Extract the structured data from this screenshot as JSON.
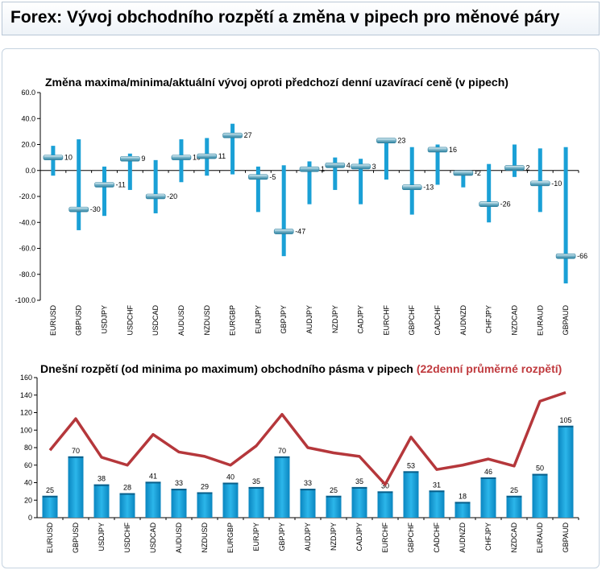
{
  "header": {
    "title": "Forex: Vývoj obchodního rozpětí a změna v pipech pro měnové páry"
  },
  "colors": {
    "bar": "#1aa0d6",
    "bar_dark": "#0a76ad",
    "line": "#b5373b",
    "highlight": "#c03a3e"
  },
  "chart_data": [
    {
      "type": "bar",
      "subtype": "range-marker",
      "title": "Změna maxima/minima/aktuální vývoj oproti předchozí denní uzavírací ceně (v pipech)",
      "ylim": [
        -100,
        60
      ],
      "yticks": [
        "60.0",
        "40.0",
        "20.0",
        "0.0",
        "-20.0",
        "-40.0",
        "-60.0",
        "-80.0",
        "-100.0"
      ],
      "categories": [
        "EURUSD",
        "GBPUSD",
        "USDJPY",
        "USDCHF",
        "USDCAD",
        "AUDUSD",
        "NZDUSD",
        "EURGBP",
        "EURJPY",
        "GBPJPY",
        "AUDJPY",
        "NZDJPY",
        "CADJPY",
        "EURCHF",
        "GBPCHF",
        "CADCHF",
        "AUDNZD",
        "CHFJPY",
        "NZDCAD",
        "EURAUD",
        "GBPAUD"
      ],
      "high": [
        19,
        24,
        3,
        13,
        8,
        24,
        25,
        36,
        3,
        4,
        7,
        10,
        9,
        24,
        18,
        20,
        0,
        5,
        20,
        17,
        18
      ],
      "low": [
        -4,
        -46,
        -35,
        -15,
        -33,
        -9,
        -4,
        -3,
        -32,
        -66,
        -26,
        -15,
        -26,
        -7,
        -34,
        -11,
        -13,
        -40,
        -5,
        -32,
        -87
      ],
      "current": [
        10,
        -30,
        -11,
        9,
        -20,
        10,
        11,
        27,
        -5,
        -47,
        1,
        4,
        3,
        23,
        -13,
        16,
        -2,
        -26,
        2,
        -10,
        -66
      ],
      "labels": [
        "10",
        "-30",
        "-11",
        "9",
        "-20",
        "10",
        "11",
        "27",
        "-5",
        "-47",
        "1",
        "4",
        "3",
        "23",
        "-13",
        "16",
        "-2",
        "-26",
        "2",
        "-10",
        "-66"
      ],
      "grid": false
    },
    {
      "type": "bar",
      "title_main": "Dnešní rozpětí (od minima po maximum) obchodního pásma v pipech",
      "title_highlight": "(22denní průměrné rozpětí)",
      "ylim": [
        0,
        160
      ],
      "yticks": [
        "160",
        "140",
        "120",
        "100",
        "80",
        "60",
        "40",
        "20",
        "0"
      ],
      "categories": [
        "EURUSD",
        "GBPUSD",
        "USDJPY",
        "USDCHF",
        "USDCAD",
        "AUDUSD",
        "NZDUSD",
        "EURGBP",
        "EURJPY",
        "GBPJPY",
        "AUDJPY",
        "NZDJPY",
        "CADJPY",
        "EURCHF",
        "GBPCHF",
        "CADCHF",
        "AUDNZD",
        "CHFJPY",
        "NZDCAD",
        "EURAUD",
        "GBPAUD"
      ],
      "series": [
        {
          "values": [
            25,
            70,
            38,
            28,
            41,
            33,
            29,
            40,
            35,
            70,
            33,
            25,
            35,
            30,
            53,
            31,
            18,
            46,
            25,
            50,
            105
          ],
          "labels": [
            "25",
            "70",
            "38",
            "28",
            "41",
            "33",
            "29",
            "40",
            "35",
            "70",
            "33",
            "25",
            "35",
            "30",
            "53",
            "31",
            "18",
            "46",
            "25",
            "50",
            "105"
          ]
        },
        {
          "values": [
            77,
            113,
            69,
            60,
            95,
            75,
            70,
            60,
            82,
            118,
            80,
            74,
            70,
            38,
            92,
            55,
            60,
            67,
            59,
            133,
            143
          ]
        }
      ],
      "grid": false
    }
  ]
}
